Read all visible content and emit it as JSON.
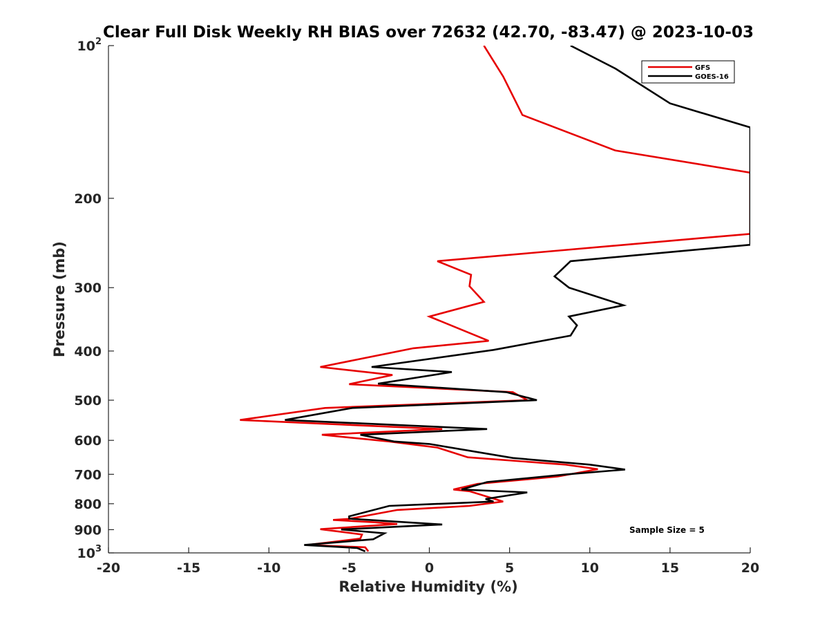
{
  "chart_data": {
    "type": "line",
    "title": "Clear Full Disk Weekly RH BIAS over 72632 (42.70, -83.47) @ 2023-10-03",
    "xlabel": "Relative Humidity (%)",
    "ylabel": "Pressure (mb)",
    "xlim": [
      -20,
      20
    ],
    "ylim": [
      100,
      1000
    ],
    "y_scale": "log",
    "y_reversed": true,
    "x_ticks": [
      "-20",
      "-15",
      "-10",
      "-5",
      "0",
      "5",
      "10",
      "15",
      "20"
    ],
    "y_ticks": [
      {
        "value": 100,
        "base": "10",
        "exp": "2"
      },
      {
        "value": 200,
        "label": "200"
      },
      {
        "value": 300,
        "label": "300"
      },
      {
        "value": 400,
        "label": "400"
      },
      {
        "value": 500,
        "label": "500"
      },
      {
        "value": 600,
        "label": "600"
      },
      {
        "value": 700,
        "label": "700"
      },
      {
        "value": 800,
        "label": "800"
      },
      {
        "value": 900,
        "label": "900"
      },
      {
        "value": 1000,
        "base": "10",
        "exp": "3"
      }
    ],
    "grid": false,
    "legend_position": "top-right",
    "annotation": "Sample Size = 5",
    "series": [
      {
        "name": "GFS",
        "color": "#e60000",
        "points": [
          [
            3.4,
            100
          ],
          [
            4.6,
            115
          ],
          [
            5.8,
            137
          ],
          [
            11.6,
            161
          ],
          [
            20,
            178
          ],
          [
            20,
            235
          ],
          [
            16,
            241
          ],
          [
            0.5,
            266
          ],
          [
            2.6,
            283
          ],
          [
            2.5,
            298
          ],
          [
            3.4,
            320
          ],
          [
            0,
            342
          ],
          [
            3.7,
            382
          ],
          [
            -1,
            395
          ],
          [
            -6.8,
            430
          ],
          [
            -2.3,
            446
          ],
          [
            -5,
            465
          ],
          [
            5.2,
            482
          ],
          [
            6.1,
            500
          ],
          [
            -6.5,
            518
          ],
          [
            -11.8,
            547
          ],
          [
            0.8,
            570
          ],
          [
            -6.7,
            585
          ],
          [
            -2.5,
            603
          ],
          [
            0.5,
            620
          ],
          [
            2.4,
            648
          ],
          [
            8.5,
            670
          ],
          [
            10.5,
            684
          ],
          [
            8,
            707
          ],
          [
            3,
            731
          ],
          [
            1.5,
            750
          ],
          [
            2.5,
            756
          ],
          [
            4.6,
            792
          ],
          [
            2.5,
            808
          ],
          [
            -2,
            823
          ],
          [
            -5,
            857
          ],
          [
            -6,
            861
          ],
          [
            -3.5,
            870
          ],
          [
            -2,
            877
          ],
          [
            -6.8,
            898
          ],
          [
            -4.2,
            920
          ],
          [
            -4.3,
            937
          ],
          [
            -7.6,
            965
          ],
          [
            -4,
            975
          ],
          [
            -3.8,
            993
          ]
        ]
      },
      {
        "name": "GOES-16",
        "color": "#000000",
        "points": [
          [
            8.8,
            100
          ],
          [
            11.6,
            111
          ],
          [
            15,
            130
          ],
          [
            20,
            145
          ],
          [
            20,
            247
          ],
          [
            8.8,
            266
          ],
          [
            7.8,
            285
          ],
          [
            8.7,
            300
          ],
          [
            12.1,
            325
          ],
          [
            8.7,
            342
          ],
          [
            9.2,
            356
          ],
          [
            8.8,
            373
          ],
          [
            4,
            398
          ],
          [
            -3.6,
            430
          ],
          [
            1.4,
            440
          ],
          [
            -3.2,
            464
          ],
          [
            4.8,
            482
          ],
          [
            6.7,
            500
          ],
          [
            -4.8,
            518
          ],
          [
            -9,
            547
          ],
          [
            3.6,
            570
          ],
          [
            -4.3,
            585
          ],
          [
            -2.2,
            603
          ],
          [
            0,
            610
          ],
          [
            5.2,
            650
          ],
          [
            10,
            670
          ],
          [
            12.2,
            685
          ],
          [
            8.6,
            700
          ],
          [
            3.6,
            725
          ],
          [
            2,
            750
          ],
          [
            6.1,
            760
          ],
          [
            3.5,
            783
          ],
          [
            4,
            792
          ],
          [
            -2.5,
            808
          ],
          [
            -5,
            847
          ],
          [
            -5,
            855
          ],
          [
            -4.8,
            857
          ],
          [
            0.8,
            879
          ],
          [
            -5.5,
            899
          ],
          [
            -2.8,
            915
          ],
          [
            -3.5,
            940
          ],
          [
            -7.8,
            965
          ],
          [
            -4.5,
            978
          ],
          [
            -4,
            993
          ]
        ]
      }
    ]
  }
}
